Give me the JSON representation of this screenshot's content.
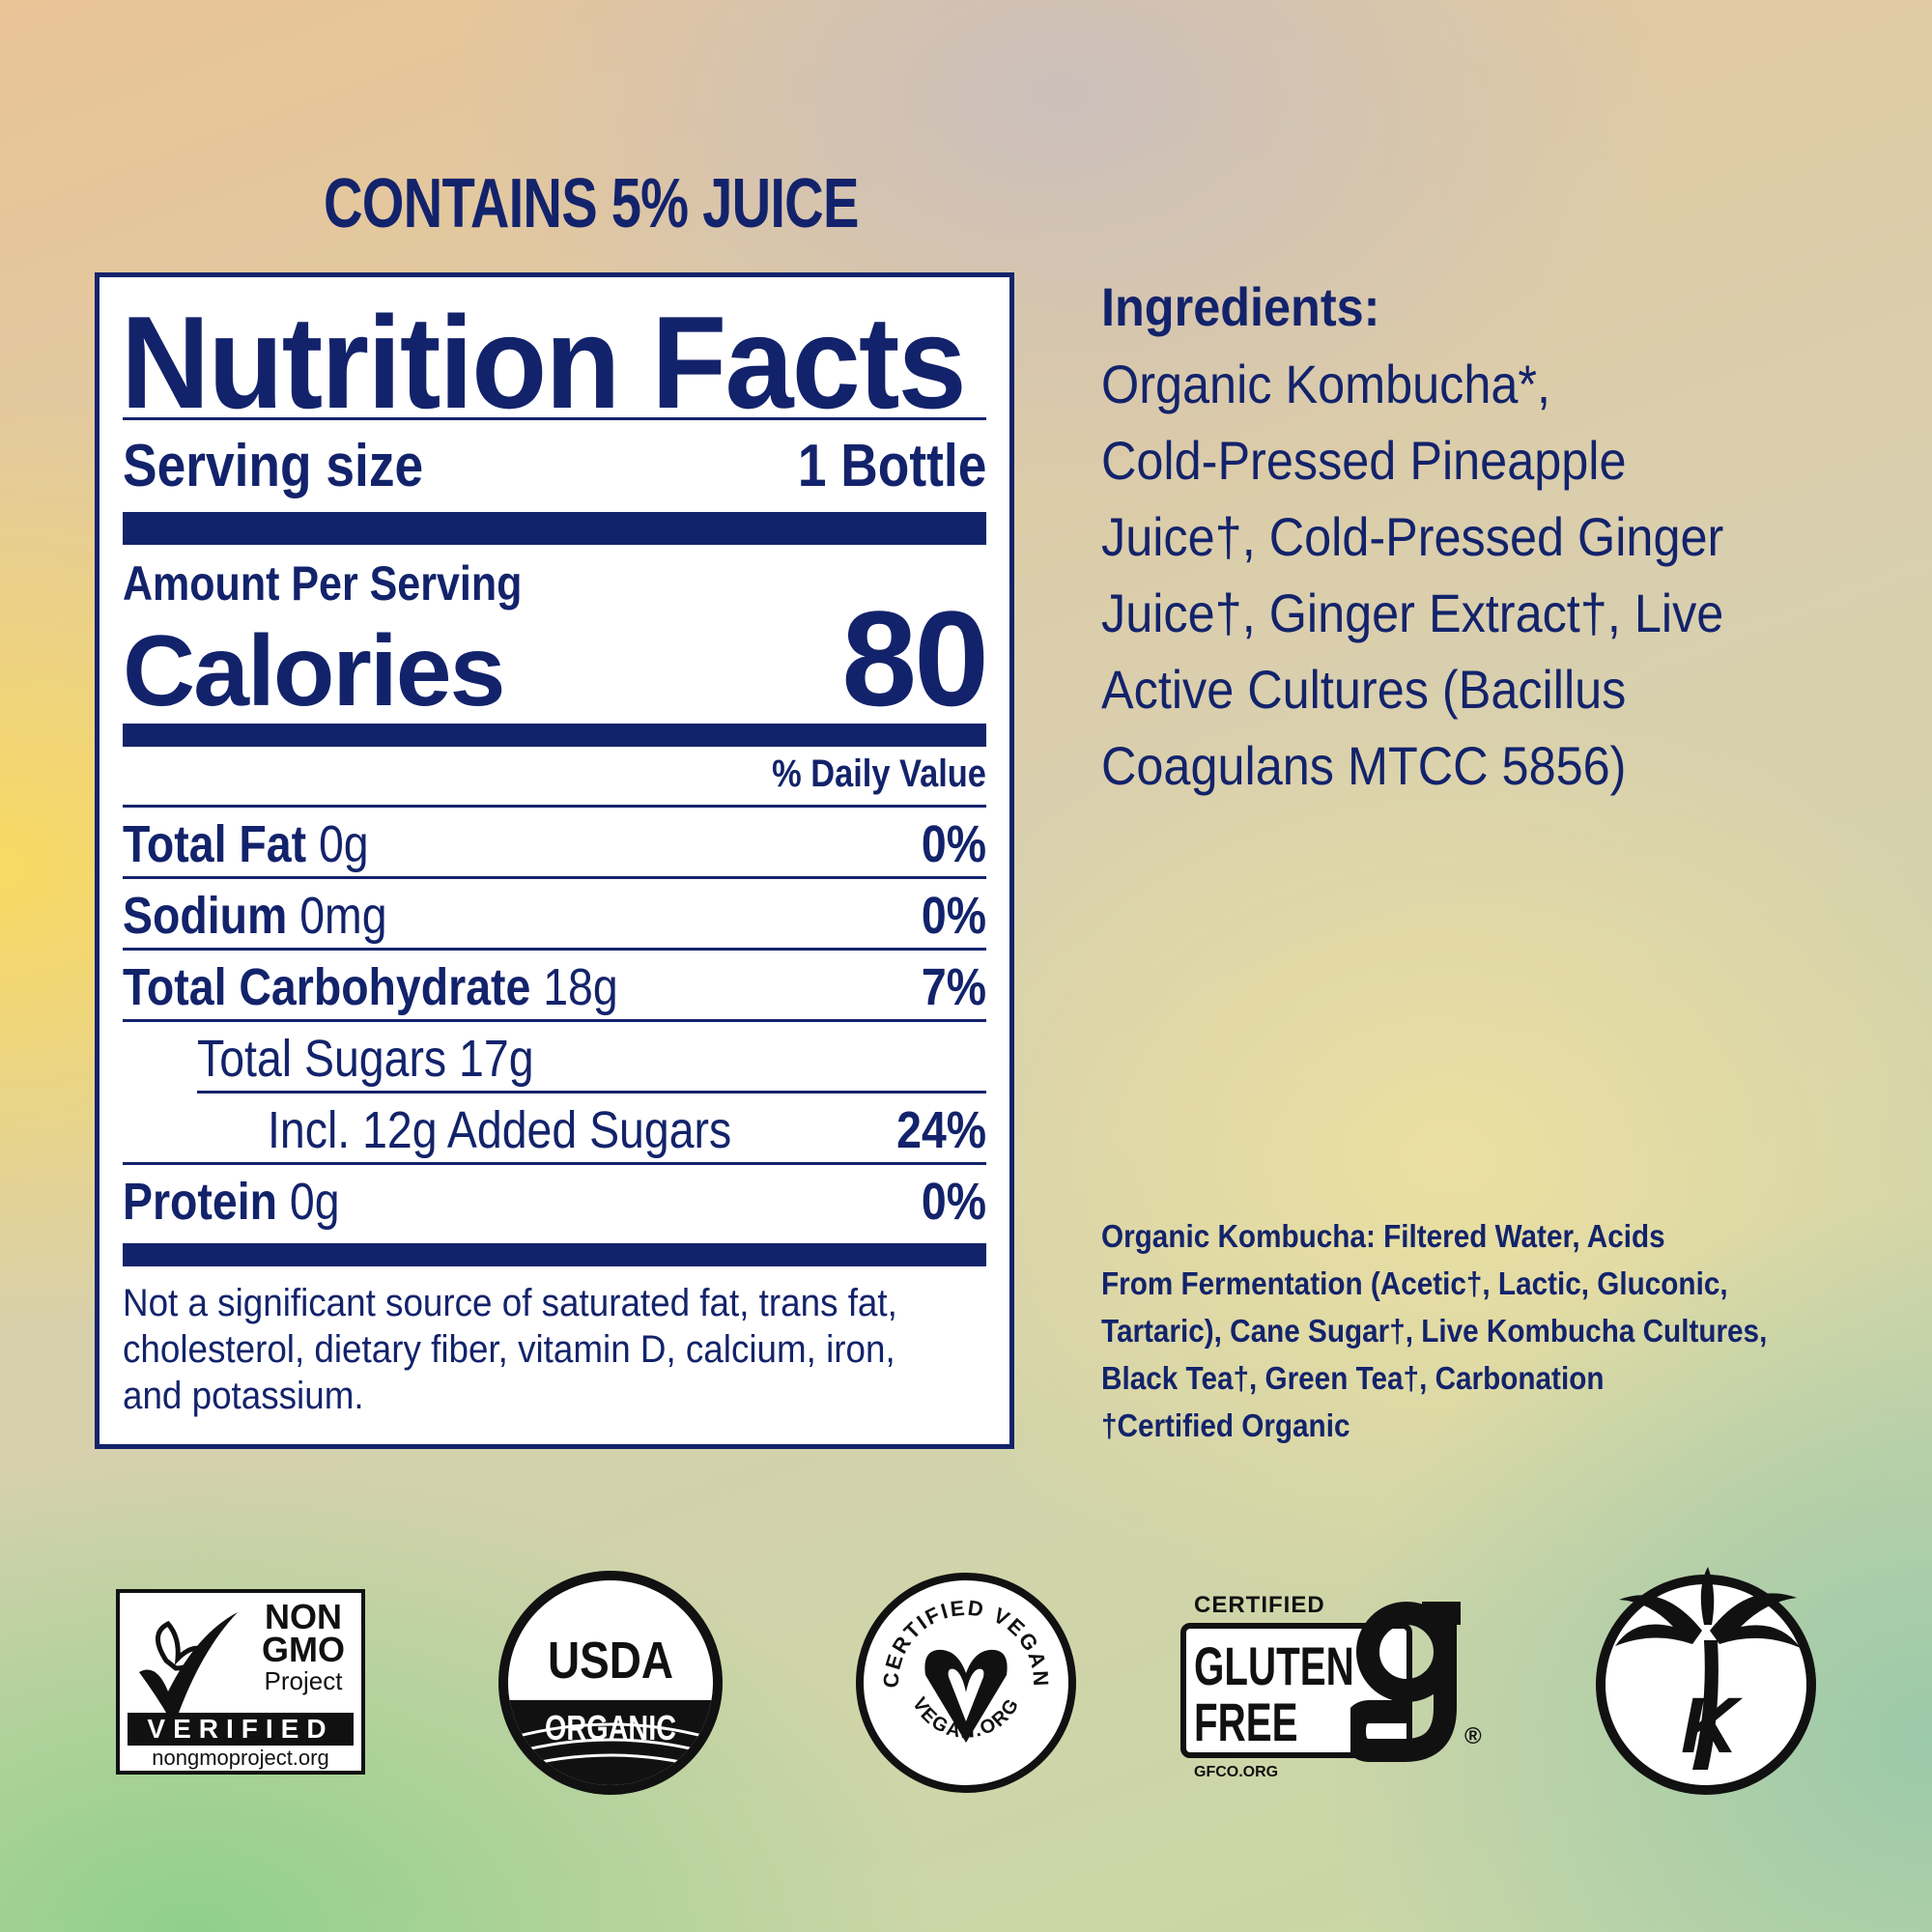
{
  "header": {
    "juice": "CONTAINS 5% JUICE"
  },
  "nutrition": {
    "title": "Nutrition Facts",
    "serving_label": "Serving size",
    "serving_value": "1 Bottle",
    "amount_per_serving": "Amount Per Serving",
    "calories_label": "Calories",
    "calories_value": "80",
    "daily_value_header": "% Daily Value",
    "rows": [
      {
        "name": "Total Fat",
        "amount": "0g",
        "dv": "0%"
      },
      {
        "name": "Sodium",
        "amount": "0mg",
        "dv": "0%"
      },
      {
        "name": "Total Carbohydrate",
        "amount": "18g",
        "dv": "7%"
      },
      {
        "name": "",
        "amount": "Total Sugars 17g",
        "dv": ""
      },
      {
        "name": "",
        "amount": "Incl. 12g Added Sugars",
        "dv": "24%"
      },
      {
        "name": "Protein",
        "amount": "0g",
        "dv": "0%"
      }
    ],
    "footnote": "Not a significant source of saturated fat, trans fat, cholesterol, dietary fiber, vitamin D, calcium, iron, and potassium."
  },
  "ingredients": {
    "heading": "Ingredients:",
    "lines": [
      "Organic Kombucha*,",
      "Cold-Pressed Pineapple",
      "Juice†, Cold-Pressed Ginger",
      "Juice†, Ginger Extract†, Live",
      "Active Cultures (Bacillus",
      "Coagulans MTCC 5856)"
    ]
  },
  "kombucha_note": {
    "lines": [
      "Organic Kombucha: Filtered Water, Acids",
      "From Fermentation (Acetic†, Lactic, Gluconic,",
      "Tartaric), Cane Sugar†, Live Kombucha Cultures,",
      "Black Tea†, Green Tea†, Carbonation",
      "†Certified Organic"
    ]
  },
  "badges": {
    "nongmo": {
      "line1": "NON",
      "line2": "GMO",
      "line3": "Project",
      "verified": "VERIFIED",
      "url": "nongmoproject.org",
      "icon": "butterfly-check-icon"
    },
    "usda": {
      "top": "USDA",
      "bottom": "ORGANIC"
    },
    "vegan": {
      "top": "CERTIFIED VEGAN",
      "bottom": "VEGAN.ORG",
      "icon": "heart-v-icon"
    },
    "gluten": {
      "certified": "CERTIFIED",
      "line1": "GLUTEN",
      "line2": "FREE",
      "url": "GFCO.ORG",
      "reg": "®"
    },
    "kosher": {
      "letter": "K",
      "icon": "palm-tree-icon"
    }
  },
  "colors": {
    "navy": "#13236b",
    "black": "#111111"
  }
}
